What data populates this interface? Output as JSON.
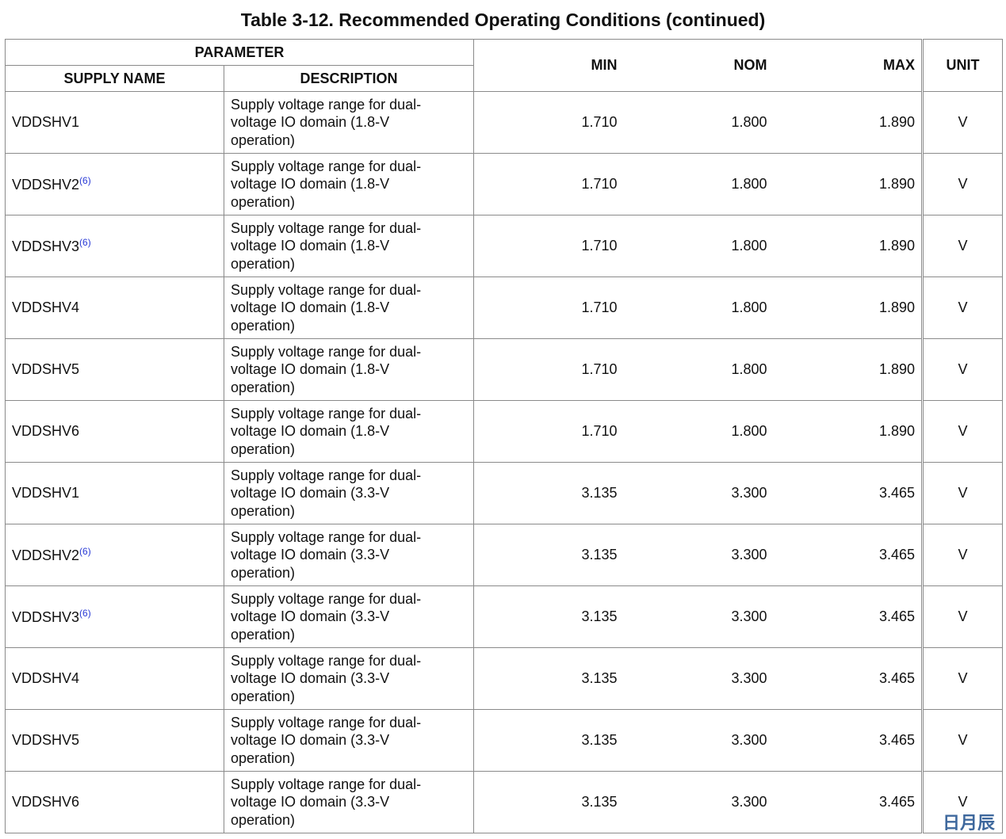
{
  "title": "Table 3-12. Recommended Operating Conditions (continued)",
  "table": {
    "headers": {
      "parameter": "PARAMETER",
      "supply_name": "SUPPLY NAME",
      "description": "DESCRIPTION",
      "min": "MIN",
      "nom": "NOM",
      "max": "MAX",
      "unit": "UNIT"
    },
    "rows": [
      {
        "supply_name": "VDDSHV1",
        "description": "Supply voltage range for dual-voltage IO domain (1.8-V operation)",
        "min": "1.710",
        "nom": "1.800",
        "max": "1.890",
        "unit": "V"
      },
      {
        "supply_name": "VDDSHV2",
        "footnote": "(6)",
        "description": "Supply voltage range for dual-voltage IO domain (1.8-V operation)",
        "min": "1.710",
        "nom": "1.800",
        "max": "1.890",
        "unit": "V"
      },
      {
        "supply_name": "VDDSHV3",
        "footnote": "(6)",
        "description": "Supply voltage range for dual-voltage IO domain (1.8-V operation)",
        "min": "1.710",
        "nom": "1.800",
        "max": "1.890",
        "unit": "V"
      },
      {
        "supply_name": "VDDSHV4",
        "description": "Supply voltage range for dual-voltage IO domain (1.8-V operation)",
        "min": "1.710",
        "nom": "1.800",
        "max": "1.890",
        "unit": "V"
      },
      {
        "supply_name": "VDDSHV5",
        "description": "Supply voltage range for dual-voltage IO domain (1.8-V operation)",
        "min": "1.710",
        "nom": "1.800",
        "max": "1.890",
        "unit": "V"
      },
      {
        "supply_name": "VDDSHV6",
        "description": "Supply voltage range for dual-voltage IO domain (1.8-V operation)",
        "min": "1.710",
        "nom": "1.800",
        "max": "1.890",
        "unit": "V"
      },
      {
        "supply_name": "VDDSHV1",
        "description": "Supply voltage range for dual-voltage IO domain (3.3-V operation)",
        "min": "3.135",
        "nom": "3.300",
        "max": "3.465",
        "unit": "V"
      },
      {
        "supply_name": "VDDSHV2",
        "footnote": "(6)",
        "description": "Supply voltage range for dual-voltage IO domain (3.3-V operation)",
        "min": "3.135",
        "nom": "3.300",
        "max": "3.465",
        "unit": "V"
      },
      {
        "supply_name": "VDDSHV3",
        "footnote": "(6)",
        "description": "Supply voltage range for dual-voltage IO domain (3.3-V operation)",
        "min": "3.135",
        "nom": "3.300",
        "max": "3.465",
        "unit": "V"
      },
      {
        "supply_name": "VDDSHV4",
        "description": "Supply voltage range for dual-voltage IO domain (3.3-V operation)",
        "min": "3.135",
        "nom": "3.300",
        "max": "3.465",
        "unit": "V"
      },
      {
        "supply_name": "VDDSHV5",
        "description": "Supply voltage range for dual-voltage IO domain (3.3-V operation)",
        "min": "3.135",
        "nom": "3.300",
        "max": "3.465",
        "unit": "V"
      },
      {
        "supply_name": "VDDSHV6",
        "description": "Supply voltage range for dual-voltage IO domain (3.3-V operation)",
        "min": "3.135",
        "nom": "3.300",
        "max": "3.465",
        "unit": "V"
      }
    ]
  },
  "watermark": "日月辰"
}
